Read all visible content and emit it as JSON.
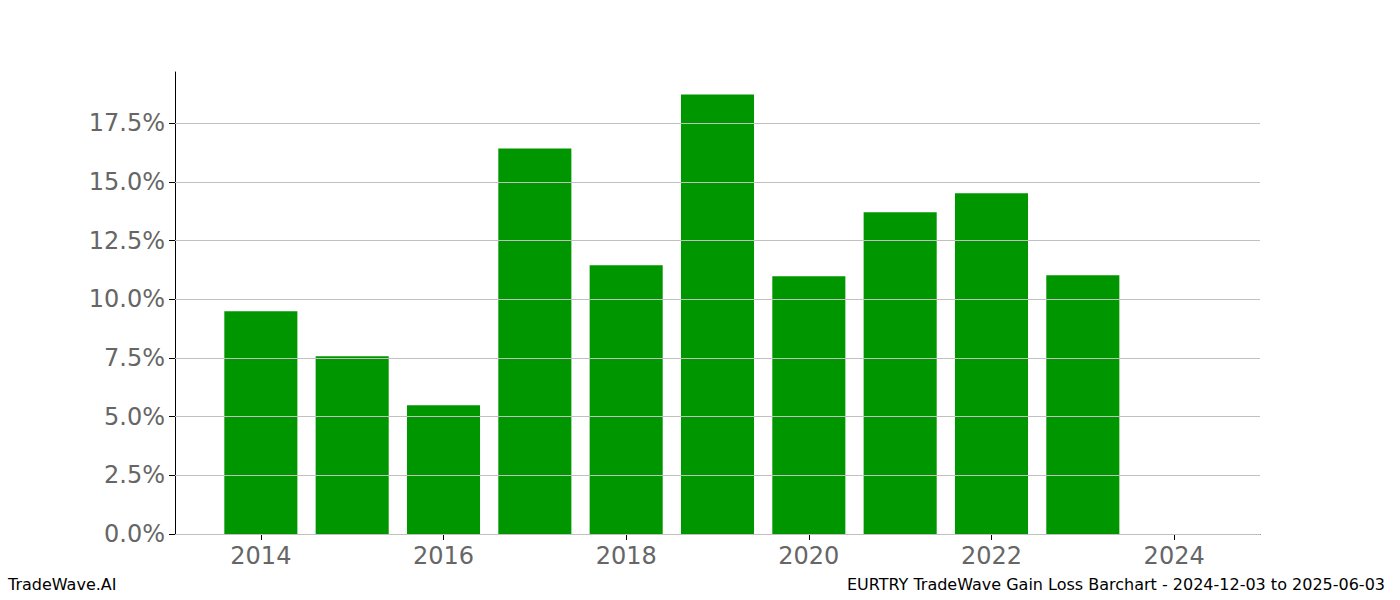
{
  "chart_data": {
    "type": "bar",
    "title": "EURTRY TradeWave Gain Loss Barchart - 2024-12-03 to 2025-06-03",
    "annotations": [
      "TradeWave.AI"
    ],
    "x": [
      2014,
      2015,
      2016,
      2017,
      2018,
      2019,
      2020,
      2021,
      2022,
      2023,
      2024
    ],
    "values": [
      9.49,
      7.58,
      5.49,
      16.43,
      11.45,
      18.73,
      10.98,
      13.71,
      14.52,
      11.03,
      0
    ],
    "color": "#009600",
    "xlim": [
      2013.06,
      2024.94
    ],
    "xticks": [
      2014,
      2016,
      2018,
      2020,
      2022,
      2024
    ],
    "ylim": [
      0,
      19.69
    ],
    "yticks": [
      {
        "value": 0,
        "label": "0.0%"
      },
      {
        "value": 2.5,
        "label": "2.5%"
      },
      {
        "value": 5,
        "label": "5.0%"
      },
      {
        "value": 7.5,
        "label": "7.5%"
      },
      {
        "value": 10,
        "label": "10.0%"
      },
      {
        "value": 12.5,
        "label": "12.5%"
      },
      {
        "value": 15,
        "label": "15.0%"
      },
      {
        "value": 17.5,
        "label": "17.5%"
      }
    ],
    "grid": true
  }
}
